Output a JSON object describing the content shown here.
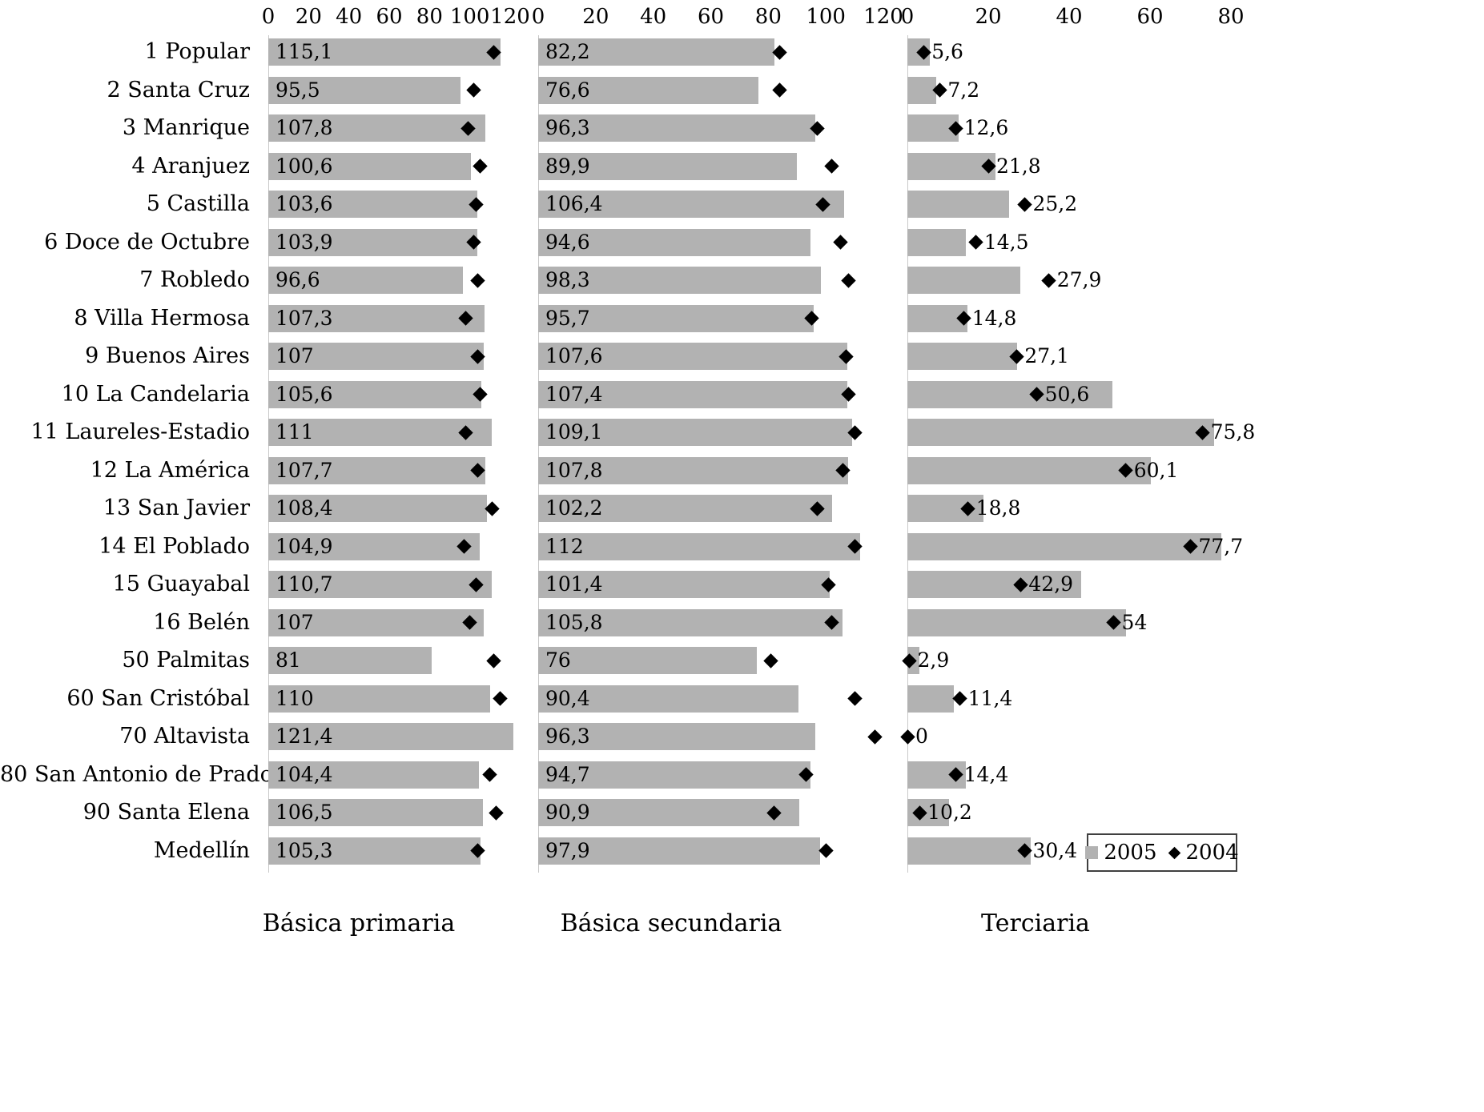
{
  "chart_data": {
    "type": "bar",
    "orientation": "horizontal",
    "grid": false,
    "legend_position": "bottom-right",
    "panels": [
      {
        "title": "Básica primaria",
        "xlim": [
          0,
          120
        ],
        "ticks": [
          0,
          20,
          40,
          60,
          80,
          100,
          120
        ]
      },
      {
        "title": "Básica secundaria",
        "xlim": [
          0,
          120
        ],
        "ticks": [
          0,
          20,
          40,
          60,
          80,
          100,
          120
        ]
      },
      {
        "title": "Terciaria",
        "xlim": [
          0,
          80
        ],
        "ticks": [
          0,
          20,
          40,
          60,
          80
        ]
      }
    ],
    "categories": [
      "1 Popular",
      "2 Santa Cruz",
      "3 Manrique",
      "4 Aranjuez",
      "5 Castilla",
      "6 Doce de Octubre",
      "7 Robledo",
      "8 Villa Hermosa",
      "9 Buenos Aires",
      "10 La Candelaria",
      "11 Laureles-Estadio",
      "12 La América",
      "13 San Javier",
      "14 El Poblado",
      "15 Guayabal",
      "16 Belén",
      "50 Palmitas",
      "60 San Cristóbal",
      "70 Altavista",
      "80 San Antonio de Prado",
      "90 Santa Elena",
      "Medellín"
    ],
    "labels_2005": {
      "primaria": [
        "115,1",
        "95,5",
        "107,8",
        "100,6",
        "103,6",
        "103,9",
        "96,6",
        "107,3",
        "107",
        "105,6",
        "111",
        "107,7",
        "108,4",
        "104,9",
        "110,7",
        "107",
        "81",
        "110",
        "121,4",
        "104,4",
        "106,5",
        "105,3"
      ],
      "secundaria": [
        "82,2",
        "76,6",
        "96,3",
        "89,9",
        "106,4",
        "94,6",
        "98,3",
        "95,7",
        "107,6",
        "107,4",
        "109,1",
        "107,8",
        "102,2",
        "112",
        "101,4",
        "105,8",
        "76",
        "90,4",
        "96,3",
        "94,7",
        "90,9",
        "97,9"
      ],
      "terciaria": [
        "5,6",
        "7,2",
        "12,6",
        "21,8",
        "25,2",
        "14,5",
        "27,9",
        "14,8",
        "27,1",
        "50,6",
        "75,8",
        "60,1",
        "18,8",
        "77,7",
        "42,9",
        "54",
        "2,9",
        "11,4",
        "0",
        "14,4",
        "10,2",
        "30,4"
      ]
    },
    "values_2004_estimated": {
      "primaria": [
        112,
        102,
        99,
        105,
        103,
        102,
        104,
        98,
        104,
        105,
        98,
        104,
        111,
        97,
        103,
        100,
        112,
        115,
        null,
        110,
        113,
        104
      ],
      "secundaria": [
        84,
        84,
        97,
        102,
        99,
        105,
        108,
        95,
        107,
        108,
        110,
        106,
        97,
        110,
        101,
        102,
        81,
        110,
        117,
        93,
        82,
        100
      ],
      "terciaria": [
        4,
        8,
        12,
        20,
        29,
        17,
        35,
        14,
        27,
        32,
        73,
        54,
        15,
        70,
        28,
        51,
        0.5,
        13,
        0,
        12,
        3,
        29
      ]
    },
    "legend": [
      {
        "label": "2005",
        "marker": "square",
        "color": "#b2b2b2"
      },
      {
        "label": "2004",
        "marker": "diamond",
        "color": "#000000"
      }
    ]
  },
  "colors": {
    "bar": "#b2b2b2",
    "marker": "#000000",
    "axis_line": "#c9c9c9",
    "text": "#000000",
    "background": "#ffffff"
  }
}
